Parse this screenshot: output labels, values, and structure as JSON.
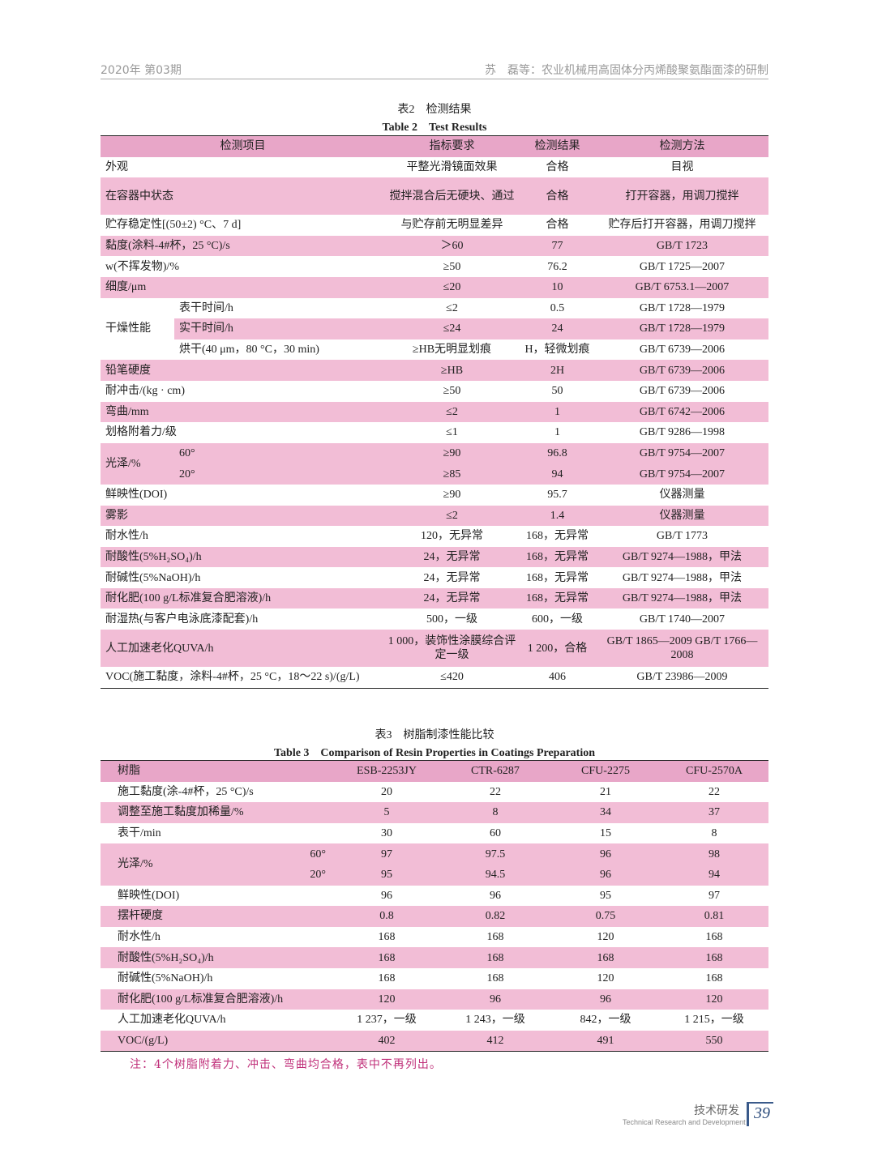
{
  "header": {
    "left": "2020年 第03期",
    "right": "苏　磊等：农业机械用高固体分丙烯酸聚氨酯面漆的研制"
  },
  "table2": {
    "caption_cn": "表2　检测结果",
    "caption_en": "Table 2　Test Results",
    "columns": [
      "检测项目",
      "指标要求",
      "检测结果",
      "检测方法"
    ],
    "rows": [
      {
        "item": "外观",
        "req": "平整光滑镜面效果",
        "res": "合格",
        "method": "目视"
      },
      {
        "item": "在容器中状态",
        "req": "搅拌混合后无硬块、通过",
        "res": "合格",
        "method": "打开容器，用调刀搅拌",
        "tall": true
      },
      {
        "item": "贮存稳定性[(50±2) °C、7 d]",
        "req": "与贮存前无明显差异",
        "res": "合格",
        "method": "贮存后打开容器，用调刀搅拌"
      },
      {
        "item": "黏度(涂料-4#杯，25 °C)/s",
        "req": "＞60",
        "res": "77",
        "method": "GB/T 1723"
      },
      {
        "item": "w(不挥发物)/%",
        "req": "≥50",
        "res": "76.2",
        "method": "GB/T 1725—2007"
      },
      {
        "item": "细度/μm",
        "req": "≤20",
        "res": "10",
        "method": "GB/T 6753.1—2007"
      },
      {
        "group": "干燥性能",
        "item": "表干时间/h",
        "req": "≤2",
        "res": "0.5",
        "method": "GB/T 1728—1979"
      },
      {
        "group": "干燥性能",
        "item": "实干时间/h",
        "req": "≤24",
        "res": "24",
        "method": "GB/T 1728—1979"
      },
      {
        "group": "干燥性能",
        "item": "烘干(40 μm，80 °C，30 min)",
        "req": "≥HB无明显划痕",
        "res": "H，轻微划痕",
        "method": "GB/T 6739—2006"
      },
      {
        "item": "铅笔硬度",
        "req": "≥HB",
        "res": "2H",
        "method": "GB/T 6739—2006"
      },
      {
        "item": "耐冲击/(kg · cm)",
        "req": "≥50",
        "res": "50",
        "method": "GB/T 6739—2006"
      },
      {
        "item": "弯曲/mm",
        "req": "≤2",
        "res": "1",
        "method": "GB/T 6742—2006"
      },
      {
        "item": "划格附着力/级",
        "req": "≤1",
        "res": "1",
        "method": "GB/T 9286—1998"
      },
      {
        "group": "光泽/%",
        "item": "60°",
        "req": "≥90",
        "res": "96.8",
        "method": "GB/T 9754—2007"
      },
      {
        "group": "光泽/%",
        "item": "20°",
        "req": "≥85",
        "res": "94",
        "method": "GB/T 9754—2007"
      },
      {
        "item": "鲜映性(DOI)",
        "req": "≥90",
        "res": "95.7",
        "method": "仪器测量"
      },
      {
        "item": "雾影",
        "req": "≤2",
        "res": "1.4",
        "method": "仪器测量"
      },
      {
        "item": "耐水性/h",
        "req": "120，无异常",
        "res": "168，无异常",
        "method": "GB/T 1773"
      },
      {
        "item": "耐酸性(5%H₂SO₄)/h",
        "req": "24，无异常",
        "res": "168，无异常",
        "method": "GB/T 9274—1988，甲法"
      },
      {
        "item": "耐碱性(5%NaOH)/h",
        "req": "24，无异常",
        "res": "168，无异常",
        "method": "GB/T 9274—1988，甲法"
      },
      {
        "item": "耐化肥(100 g/L标准复合肥溶液)/h",
        "req": "24，无异常",
        "res": "168，无异常",
        "method": "GB/T 9274—1988，甲法"
      },
      {
        "item": "耐湿热(与客户电泳底漆配套)/h",
        "req": "500，一级",
        "res": "600，一级",
        "method": "GB/T 1740—2007"
      },
      {
        "item": "人工加速老化QUVA/h",
        "req": "1 000，装饰性涂膜综合评定一级",
        "res": "1 200，合格",
        "method": "GB/T 1865—2009 GB/T 1766—2008",
        "tall": true
      },
      {
        "item": "VOC(施工黏度，涂料-4#杯，25 °C，18～22 s)/(g/L)",
        "req": "≤420",
        "res": "406",
        "method": "GB/T 23986—2009"
      }
    ]
  },
  "table3": {
    "caption_cn": "表3　树脂制漆性能比较",
    "caption_en": "Table 3　Comparison of Resin Properties in Coatings Preparation",
    "columns": [
      "树脂",
      "ESB-2253JY",
      "CTR-6287",
      "CFU-2275",
      "CFU-2570A"
    ],
    "rows": [
      {
        "item": "施工黏度(涂-4#杯，25 °C)/s",
        "values": [
          "20",
          "22",
          "21",
          "22"
        ]
      },
      {
        "item": "调整至施工黏度加稀量/%",
        "values": [
          "5",
          "8",
          "34",
          "37"
        ]
      },
      {
        "item": "表干/min",
        "values": [
          "30",
          "60",
          "15",
          "8"
        ]
      },
      {
        "group": "光泽/%",
        "item": "60°",
        "values": [
          "97",
          "97.5",
          "96",
          "98"
        ]
      },
      {
        "group": "光泽/%",
        "item": "20°",
        "values": [
          "95",
          "94.5",
          "96",
          "94"
        ]
      },
      {
        "item": "鲜映性(DOI)",
        "values": [
          "96",
          "96",
          "95",
          "97"
        ]
      },
      {
        "item": "摆杆硬度",
        "values": [
          "0.8",
          "0.82",
          "0.75",
          "0.81"
        ]
      },
      {
        "item": "耐水性/h",
        "values": [
          "168",
          "168",
          "120",
          "168"
        ]
      },
      {
        "item": "耐酸性(5%H₂SO₄)/h",
        "values": [
          "168",
          "168",
          "168",
          "168"
        ]
      },
      {
        "item": "耐碱性(5%NaOH)/h",
        "values": [
          "168",
          "168",
          "120",
          "168"
        ]
      },
      {
        "item": "耐化肥(100 g/L标准复合肥溶液)/h",
        "values": [
          "120",
          "96",
          "96",
          "120"
        ]
      },
      {
        "item": "人工加速老化QUVA/h",
        "values": [
          "1 237，一级",
          "1 243，一级",
          "842，一级",
          "1 215，一级"
        ]
      },
      {
        "item": "VOC/(g/L)",
        "values": [
          "402",
          "412",
          "491",
          "550"
        ]
      }
    ],
    "note": "注：4个树脂附着力、冲击、弯曲均合格，表中不再列出。"
  },
  "footer": {
    "section_cn": "技术研发",
    "section_en": "Technical Research and Development",
    "page_number": "39"
  },
  "colors": {
    "header_row": "#e8a6c8",
    "pink_row": "#f2bdd6",
    "note": "#c0307a",
    "page_number": "#2a4a7a"
  }
}
